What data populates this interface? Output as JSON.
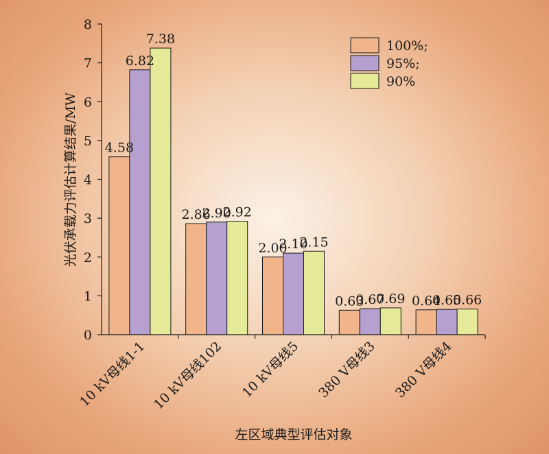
{
  "chart_data": {
    "type": "bar",
    "xlabel": "左区域典型评估对象",
    "ylabel": "光伏承载力评估计算结果/MW",
    "ylim": [
      0,
      8
    ],
    "yticks": [
      "0",
      "1",
      "2",
      "3",
      "4",
      "5",
      "6",
      "7",
      "8"
    ],
    "categories": [
      "10 kV母线1-1",
      "10 kV母线102",
      "10 kV母线5",
      "380 V母线3",
      "380 V母线4"
    ],
    "series": [
      {
        "name": "100%;",
        "color": "#f0b58a",
        "values": [
          4.58,
          2.86,
          2.0,
          0.63,
          0.64
        ],
        "labels": [
          "4.58",
          "2.86",
          "2.00",
          "0.63",
          "0.64"
        ]
      },
      {
        "name": "95%;",
        "color": "#b6a0d0",
        "values": [
          6.82,
          2.9,
          2.1,
          0.67,
          0.65
        ],
        "labels": [
          "6.82",
          "2.90",
          "2.10",
          "0.67",
          "0.65"
        ]
      },
      {
        "name": "90%",
        "color": "#e5ea98",
        "values": [
          7.38,
          2.92,
          2.15,
          0.69,
          0.66
        ],
        "labels": [
          "7.38",
          "2.92",
          "2.15",
          "0.69",
          "0.66"
        ]
      }
    ],
    "legend_position": "top-right",
    "grid": false
  }
}
